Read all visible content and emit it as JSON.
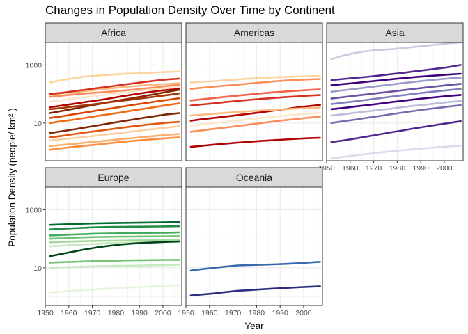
{
  "chart_data": {
    "type": "line",
    "title": "Changes in Population Density Over Time by Continent",
    "xlabel": "Year",
    "ylabel": "Population Density (people/ km² )",
    "y_scale": "log10",
    "ylim": [
      0.5,
      6000
    ],
    "xlim": [
      1950,
      2008
    ],
    "x_ticks": [
      1950,
      1960,
      1970,
      1980,
      1990,
      2000
    ],
    "y_ticks": [
      10,
      1000
    ],
    "grid": true,
    "legend": "none",
    "x": [
      1952,
      1957,
      1962,
      1967,
      1972,
      1977,
      1982,
      1987,
      1992,
      1997,
      2002,
      2007
    ],
    "facets": [
      {
        "name": "Africa",
        "series": [
          {
            "color": "#fdd49e",
            "values": [
              250,
              300,
              350,
              400,
              430,
              460,
              490,
              510,
              530,
              550,
              580,
              600
            ]
          },
          {
            "color": "#fdbb84",
            "values": [
              95,
              105,
              115,
              125,
              140,
              155,
              170,
              185,
              200,
              210,
              225,
              235
            ]
          },
          {
            "color": "#fc8d59",
            "values": [
              80,
              88,
              96,
              104,
              112,
              120,
              130,
              140,
              155,
              170,
              190,
              210
            ]
          },
          {
            "color": "#d7301f",
            "values": [
              100,
              110,
              125,
              140,
              160,
              180,
              205,
              230,
              260,
              290,
              320,
              340
            ]
          },
          {
            "color": "#b30000",
            "values": [
              35,
              40,
              46,
              53,
              60,
              70,
              82,
              95,
              110,
              125,
              140,
              150
            ]
          },
          {
            "color": "#7f2704",
            "values": [
              22,
              26,
              31,
              37,
              44,
              52,
              62,
              72,
              85,
              100,
              120,
              140
            ]
          },
          {
            "color": "#a63603",
            "values": [
              30,
              33,
              37,
              41,
              46,
              52,
              58,
              65,
              73,
              82,
              92,
              105
            ]
          },
          {
            "color": "#d94801",
            "values": [
              15,
              17,
              20,
              23,
              27,
              31,
              36,
              42,
              48,
              55,
              63,
              72
            ]
          },
          {
            "color": "#f16913",
            "values": [
              10,
              11.5,
              13,
              15,
              17.5,
              20,
              23,
              27,
              31,
              36,
              42,
              48
            ]
          },
          {
            "color": "#7f2704",
            "values": [
              4.5,
              5.2,
              6,
              7,
              8.2,
              9.6,
              11.2,
              13,
              15.2,
              17.5,
              20,
              22
            ]
          },
          {
            "color": "#fd8d3c",
            "values": [
              1.2,
              1.35,
              1.5,
              1.65,
              1.8,
              2,
              2.2,
              2.4,
              2.6,
              2.8,
              3,
              3.2
            ]
          },
          {
            "color": "#fdae6b",
            "values": [
              1.6,
              1.75,
              1.9,
              2.1,
              2.3,
              2.5,
              2.75,
              3,
              3.3,
              3.6,
              3.9,
              4.2
            ]
          },
          {
            "color": "#fdd0a2",
            "values": [
              2.5,
              2.75,
              3,
              3.3,
              3.7,
              4.1,
              4.6,
              5.1,
              5.7,
              6.3,
              7,
              7.8
            ]
          },
          {
            "color": "#e6550d",
            "values": [
              3.2,
              3.6,
              4.1,
              4.7,
              5.3,
              6,
              6.8,
              7.6,
              8.5,
              9.4,
              10.3,
              11
            ]
          },
          {
            "color": "#fee6ce",
            "values": [
              55,
              62,
              70,
              78,
              88,
              98,
              110,
              122,
              135,
              148,
              160,
              175
            ]
          }
        ]
      },
      {
        "name": "Americas",
        "series": [
          {
            "color": "#fdd49e",
            "values": [
              250,
              265,
              280,
              300,
              320,
              340,
              360,
              375,
              390,
              400,
              410,
              420
            ]
          },
          {
            "color": "#fc8d59",
            "values": [
              150,
              165,
              180,
              195,
              210,
              230,
              250,
              270,
              290,
              305,
              320,
              330
            ]
          },
          {
            "color": "#ef6548",
            "values": [
              60,
              66,
              73,
              80,
              88,
              96,
              105,
              114,
              122,
              130,
              138,
              145
            ]
          },
          {
            "color": "#d7301f",
            "values": [
              40,
              44,
              48,
              53,
              58,
              63,
              68,
              73,
              78,
              83,
              88,
              92
            ]
          },
          {
            "color": "#b30000",
            "values": [
              12,
              13.5,
              15,
              16.8,
              18.8,
              21,
              23.5,
              26.5,
              30,
              34,
              38,
              42
            ]
          },
          {
            "color": "#fdbb84",
            "values": [
              18,
              19.5,
              21,
              22.5,
              24,
              25.5,
              27,
              28.5,
              30,
              31.5,
              33,
              34
            ]
          },
          {
            "color": "#fee8c8",
            "values": [
              8,
              9,
              10,
              11,
              12.2,
              13.5,
              15,
              16.5,
              18,
              19.5,
              21,
              22.5
            ]
          },
          {
            "color": "#fc8d59",
            "values": [
              5,
              5.6,
              6.3,
              7,
              7.9,
              8.9,
              10,
              11.2,
              12.5,
              13.8,
              15.2,
              16.5
            ]
          },
          {
            "color": "#b30000",
            "values": [
              1.5,
              1.65,
              1.8,
              1.95,
              2.1,
              2.25,
              2.4,
              2.55,
              2.7,
              2.85,
              3,
              3.1
            ]
          }
        ]
      },
      {
        "name": "Asia",
        "series": [
          {
            "color": "#cbc9e2",
            "values": [
              1600,
              2100,
              2600,
              3000,
              3300,
              3500,
              3800,
              4200,
              4600,
              5100,
              5600,
              6000
            ]
          },
          {
            "color": "#54278f",
            "values": [
              300,
              330,
              360,
              390,
              430,
              480,
              530,
              600,
              670,
              750,
              850,
              1000
            ]
          },
          {
            "color": "#3f007d",
            "values": [
              200,
              220,
              240,
              265,
              290,
              320,
              350,
              380,
              410,
              440,
              470,
              500
            ]
          },
          {
            "color": "#9e9ac8",
            "values": [
              120,
              135,
              150,
              168,
              188,
              210,
              235,
              262,
              290,
              318,
              345,
              370
            ]
          },
          {
            "color": "#6a51a3",
            "values": [
              70,
              78,
              87,
              97,
              108,
              120,
              134,
              150,
              167,
              185,
              205,
              225
            ]
          },
          {
            "color": "#807dba",
            "values": [
              45,
              50,
              56,
              63,
              71,
              80,
              90,
              101,
              113,
              125,
              137,
              150
            ]
          },
          {
            "color": "#3f007d",
            "values": [
              30,
              33,
              37,
              41,
              46,
              52,
              58,
              65,
              72,
              79,
              86,
              93
            ]
          },
          {
            "color": "#bcbddc",
            "values": [
              18,
              20,
              22.5,
              25,
              28,
              31,
              35,
              39,
              43,
              48,
              53,
              58
            ]
          },
          {
            "color": "#756bb1",
            "values": [
              10,
              11.5,
              13,
              15,
              17.2,
              19.8,
              22.7,
              26,
              29.5,
              33,
              37,
              41
            ]
          },
          {
            "color": "#54278f",
            "values": [
              2.2,
              2.5,
              2.9,
              3.4,
              4,
              4.7,
              5.5,
              6.5,
              7.5,
              8.7,
              10,
              11.5
            ]
          },
          {
            "color": "#dadaeb",
            "values": [
              0.6,
              0.68,
              0.76,
              0.85,
              0.95,
              1.05,
              1.15,
              1.25,
              1.35,
              1.45,
              1.55,
              1.65
            ]
          }
        ]
      },
      {
        "name": "Europe",
        "series": [
          {
            "color": "#006d2c",
            "values": [
              300,
              310,
              320,
              330,
              340,
              345,
              350,
              355,
              360,
              365,
              370,
              380
            ]
          },
          {
            "color": "#238b45",
            "values": [
              210,
              220,
              230,
              240,
              250,
              255,
              258,
              260,
              262,
              265,
              268,
              270
            ]
          },
          {
            "color": "#41ab5d",
            "values": [
              130,
              135,
              140,
              145,
              150,
              152,
              154,
              156,
              158,
              160,
              162,
              165
            ]
          },
          {
            "color": "#74c476",
            "values": [
              100,
              104,
              108,
              112,
              115,
              117,
              118,
              119,
              120,
              121,
              122,
              123
            ]
          },
          {
            "color": "#a1d99b",
            "values": [
              75,
              78,
              80,
              82,
              84,
              85,
              86,
              87,
              88,
              88,
              89,
              90
            ]
          },
          {
            "color": "#c7e9c0",
            "values": [
              55,
              58,
              61,
              64,
              67,
              70,
              72,
              74,
              76,
              78,
              79,
              80
            ]
          },
          {
            "color": "#00441b",
            "values": [
              25,
              30,
              36,
              43,
              50,
              57,
              63,
              68,
              72,
              75,
              78,
              80
            ]
          },
          {
            "color": "#74c476",
            "values": [
              15,
              15.5,
              16,
              16.5,
              17,
              17.4,
              17.7,
              18,
              18.2,
              18.4,
              18.6,
              18.8
            ]
          },
          {
            "color": "#c7e9c0",
            "values": [
              10,
              10.3,
              10.6,
              10.9,
              11.2,
              11.4,
              11.6,
              11.8,
              12,
              12.2,
              12.4,
              12.6
            ]
          },
          {
            "color": "#e5f5e0",
            "values": [
              1.4,
              1.5,
              1.6,
              1.7,
              1.8,
              1.9,
              2,
              2.1,
              2.2,
              2.3,
              2.4,
              2.5
            ]
          }
        ]
      },
      {
        "name": "Oceania",
        "series": [
          {
            "color": "#3969ac",
            "values": [
              8,
              9,
              10,
              11,
              12,
              12.4,
              12.7,
              13,
              13.5,
              14.2,
              15,
              16
            ]
          },
          {
            "color": "#2c2d7d",
            "values": [
              1.1,
              1.2,
              1.3,
              1.45,
              1.6,
              1.7,
              1.8,
              1.9,
              2,
              2.1,
              2.2,
              2.3
            ]
          }
        ]
      }
    ]
  }
}
